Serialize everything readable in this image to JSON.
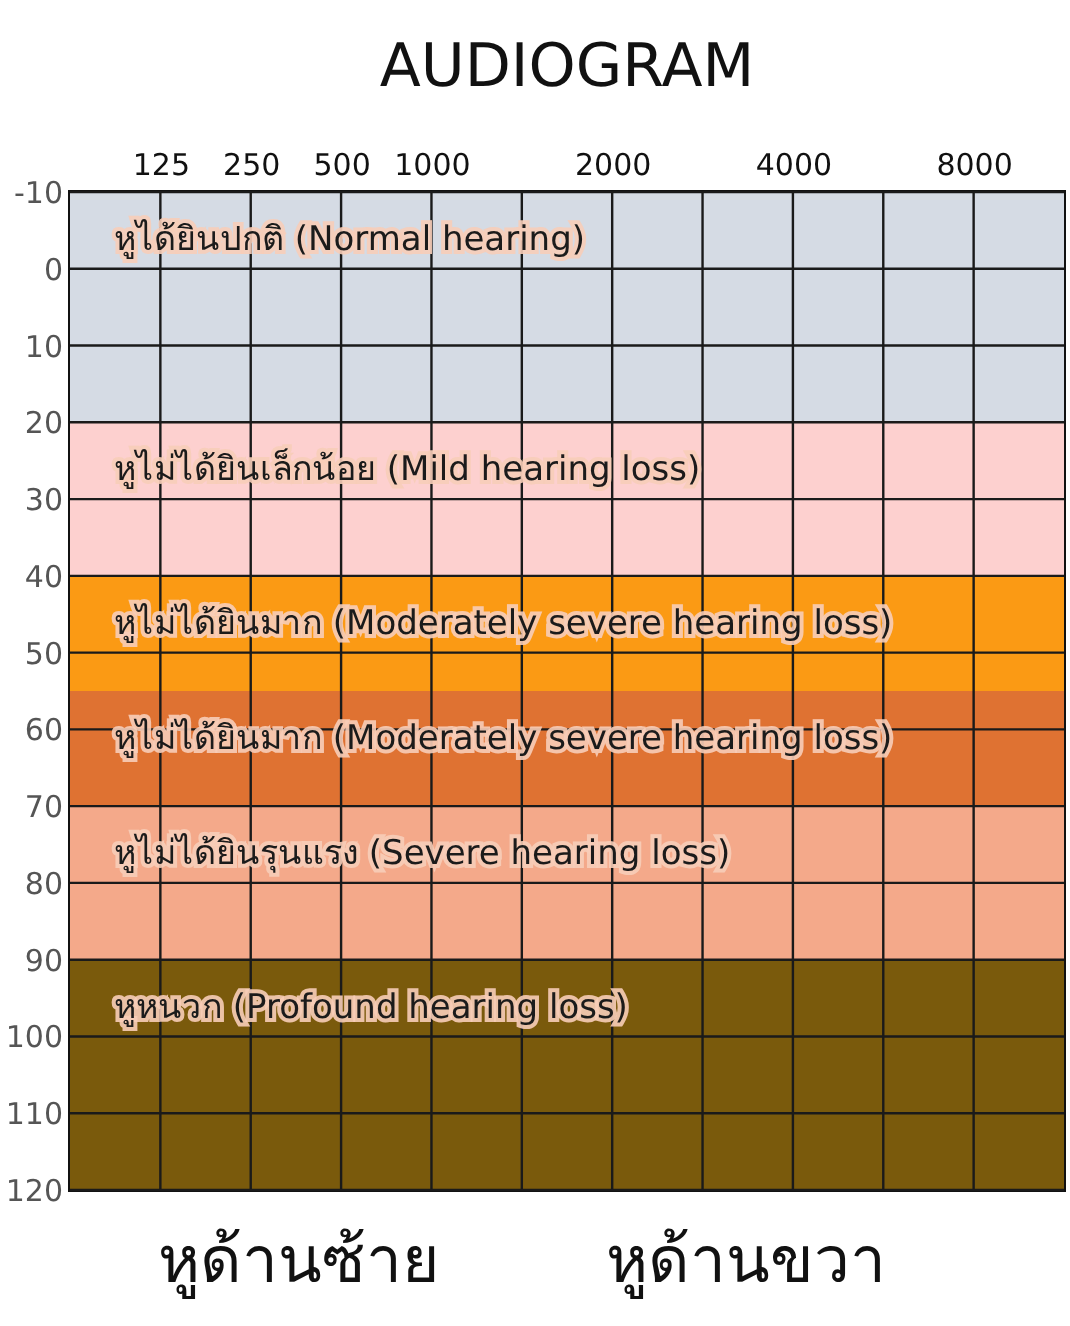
{
  "chart_data": {
    "type": "line",
    "title": "AUDIOGRAM",
    "categories": [
      "125",
      "250",
      "500",
      "1000",
      null,
      "2000",
      null,
      "4000",
      null,
      "8000"
    ],
    "ylim": [
      120,
      -10
    ],
    "yticks": [
      -10,
      0,
      10,
      20,
      30,
      40,
      50,
      60,
      70,
      80,
      90,
      100,
      110,
      120
    ],
    "grid": true,
    "bands": [
      {
        "axis": "y",
        "from": -10,
        "to": 20,
        "label": "หูได้ยินปกติ (Normal hearing)",
        "color": "#d5dbe4"
      },
      {
        "axis": "y",
        "from": 20,
        "to": 40,
        "label": "หูไม่ได้ยินเล็กน้อย (Mild hearing loss)",
        "color": "#fdd0cf"
      },
      {
        "axis": "y",
        "from": 40,
        "to": 55,
        "label": "หูไม่ได้ยินมาก (Moderately severe hearing loss)",
        "color": "#fb9a14"
      },
      {
        "axis": "y",
        "from": 55,
        "to": 70,
        "label": "หูไม่ได้ยินมาก (Moderately severe hearing loss)",
        "color": "#df7232"
      },
      {
        "axis": "y",
        "from": 70,
        "to": 90,
        "label": "หูไม่ได้ยินรุนแรง (Severe hearing loss)",
        "color": "#f4a98a"
      },
      {
        "axis": "y",
        "from": 90,
        "to": 120,
        "label": "หูหนวก (Profound hearing loss)",
        "color": "#7a5a0c"
      }
    ],
    "annotations": [
      "หูด้านซ้าย",
      "หูด้านขวา"
    ]
  }
}
